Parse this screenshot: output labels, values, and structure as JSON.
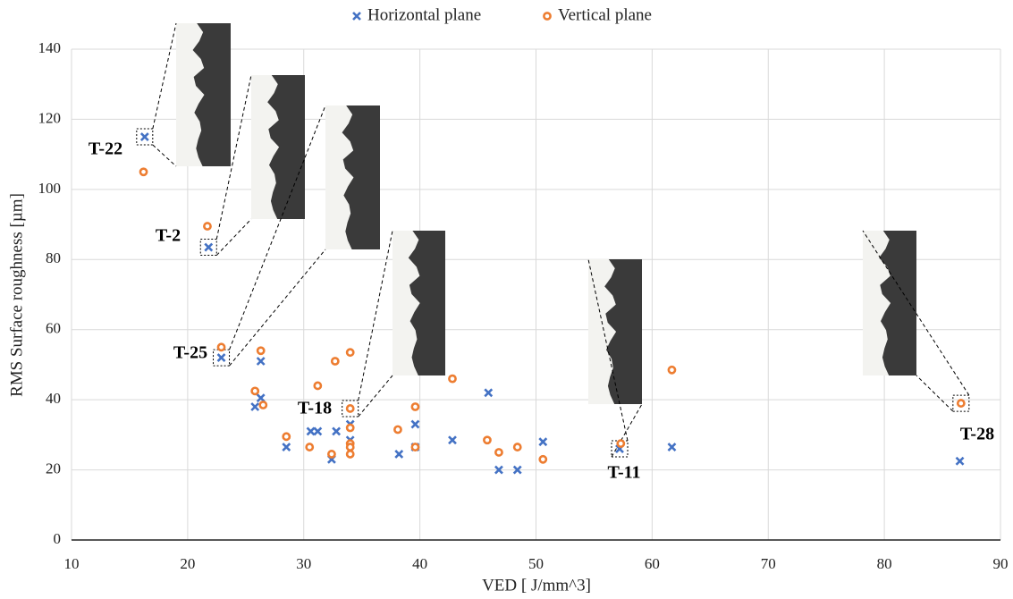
{
  "chart_data": {
    "type": "scatter",
    "xlabel": "VED [ J/mm^3]",
    "ylabel": "RMS Surface roughness [µm]",
    "xlim": [
      10,
      90
    ],
    "xticks": [
      10,
      20,
      30,
      40,
      50,
      60,
      70,
      80,
      90
    ],
    "ylim": [
      0,
      140
    ],
    "yticks": [
      0,
      20,
      40,
      60,
      80,
      100,
      120,
      140
    ],
    "grid": true,
    "legend": "top",
    "series": [
      {
        "name": "Horizontal plane",
        "color": "#4472c4",
        "marker": "x",
        "x": [
          16.3,
          21.8,
          22.9,
          26.3,
          25.8,
          26.3,
          28.5,
          30.6,
          31.2,
          32.8,
          32.4,
          34,
          34,
          34,
          38.2,
          39.6,
          39.6,
          42.8,
          45.9,
          46.8,
          48.4,
          50.6,
          57.2,
          61.7,
          86.5
        ],
        "values": [
          115,
          83.5,
          52,
          51,
          38,
          40.5,
          26.5,
          31,
          31,
          31,
          23,
          33,
          28.5,
          27,
          24.5,
          33,
          26.5,
          28.5,
          42,
          20,
          20,
          28,
          26,
          26.5,
          22.5
        ]
      },
      {
        "name": "Vertical plane",
        "color": "#ed7d31",
        "marker": "o",
        "x": [
          16.2,
          21.7,
          22.9,
          26.3,
          25.8,
          26.5,
          28.5,
          30.5,
          31.2,
          32.7,
          32.4,
          34,
          34,
          34,
          34,
          34,
          34,
          38.1,
          39.6,
          39.6,
          42.8,
          45.8,
          46.8,
          48.4,
          50.6,
          57.3,
          61.7,
          86.6
        ],
        "values": [
          105,
          89.5,
          55,
          54,
          42.5,
          38.5,
          29.5,
          26.5,
          44,
          51,
          24.5,
          53.5,
          37.5,
          32,
          27.5,
          26.5,
          24.5,
          31.5,
          38,
          26.5,
          46,
          28.5,
          25,
          26.5,
          23,
          27.5,
          48.5,
          39
        ]
      }
    ],
    "annotations": [
      "T-22",
      "T-2",
      "T-25",
      "T-18",
      "T-11",
      "T-28"
    ]
  }
}
